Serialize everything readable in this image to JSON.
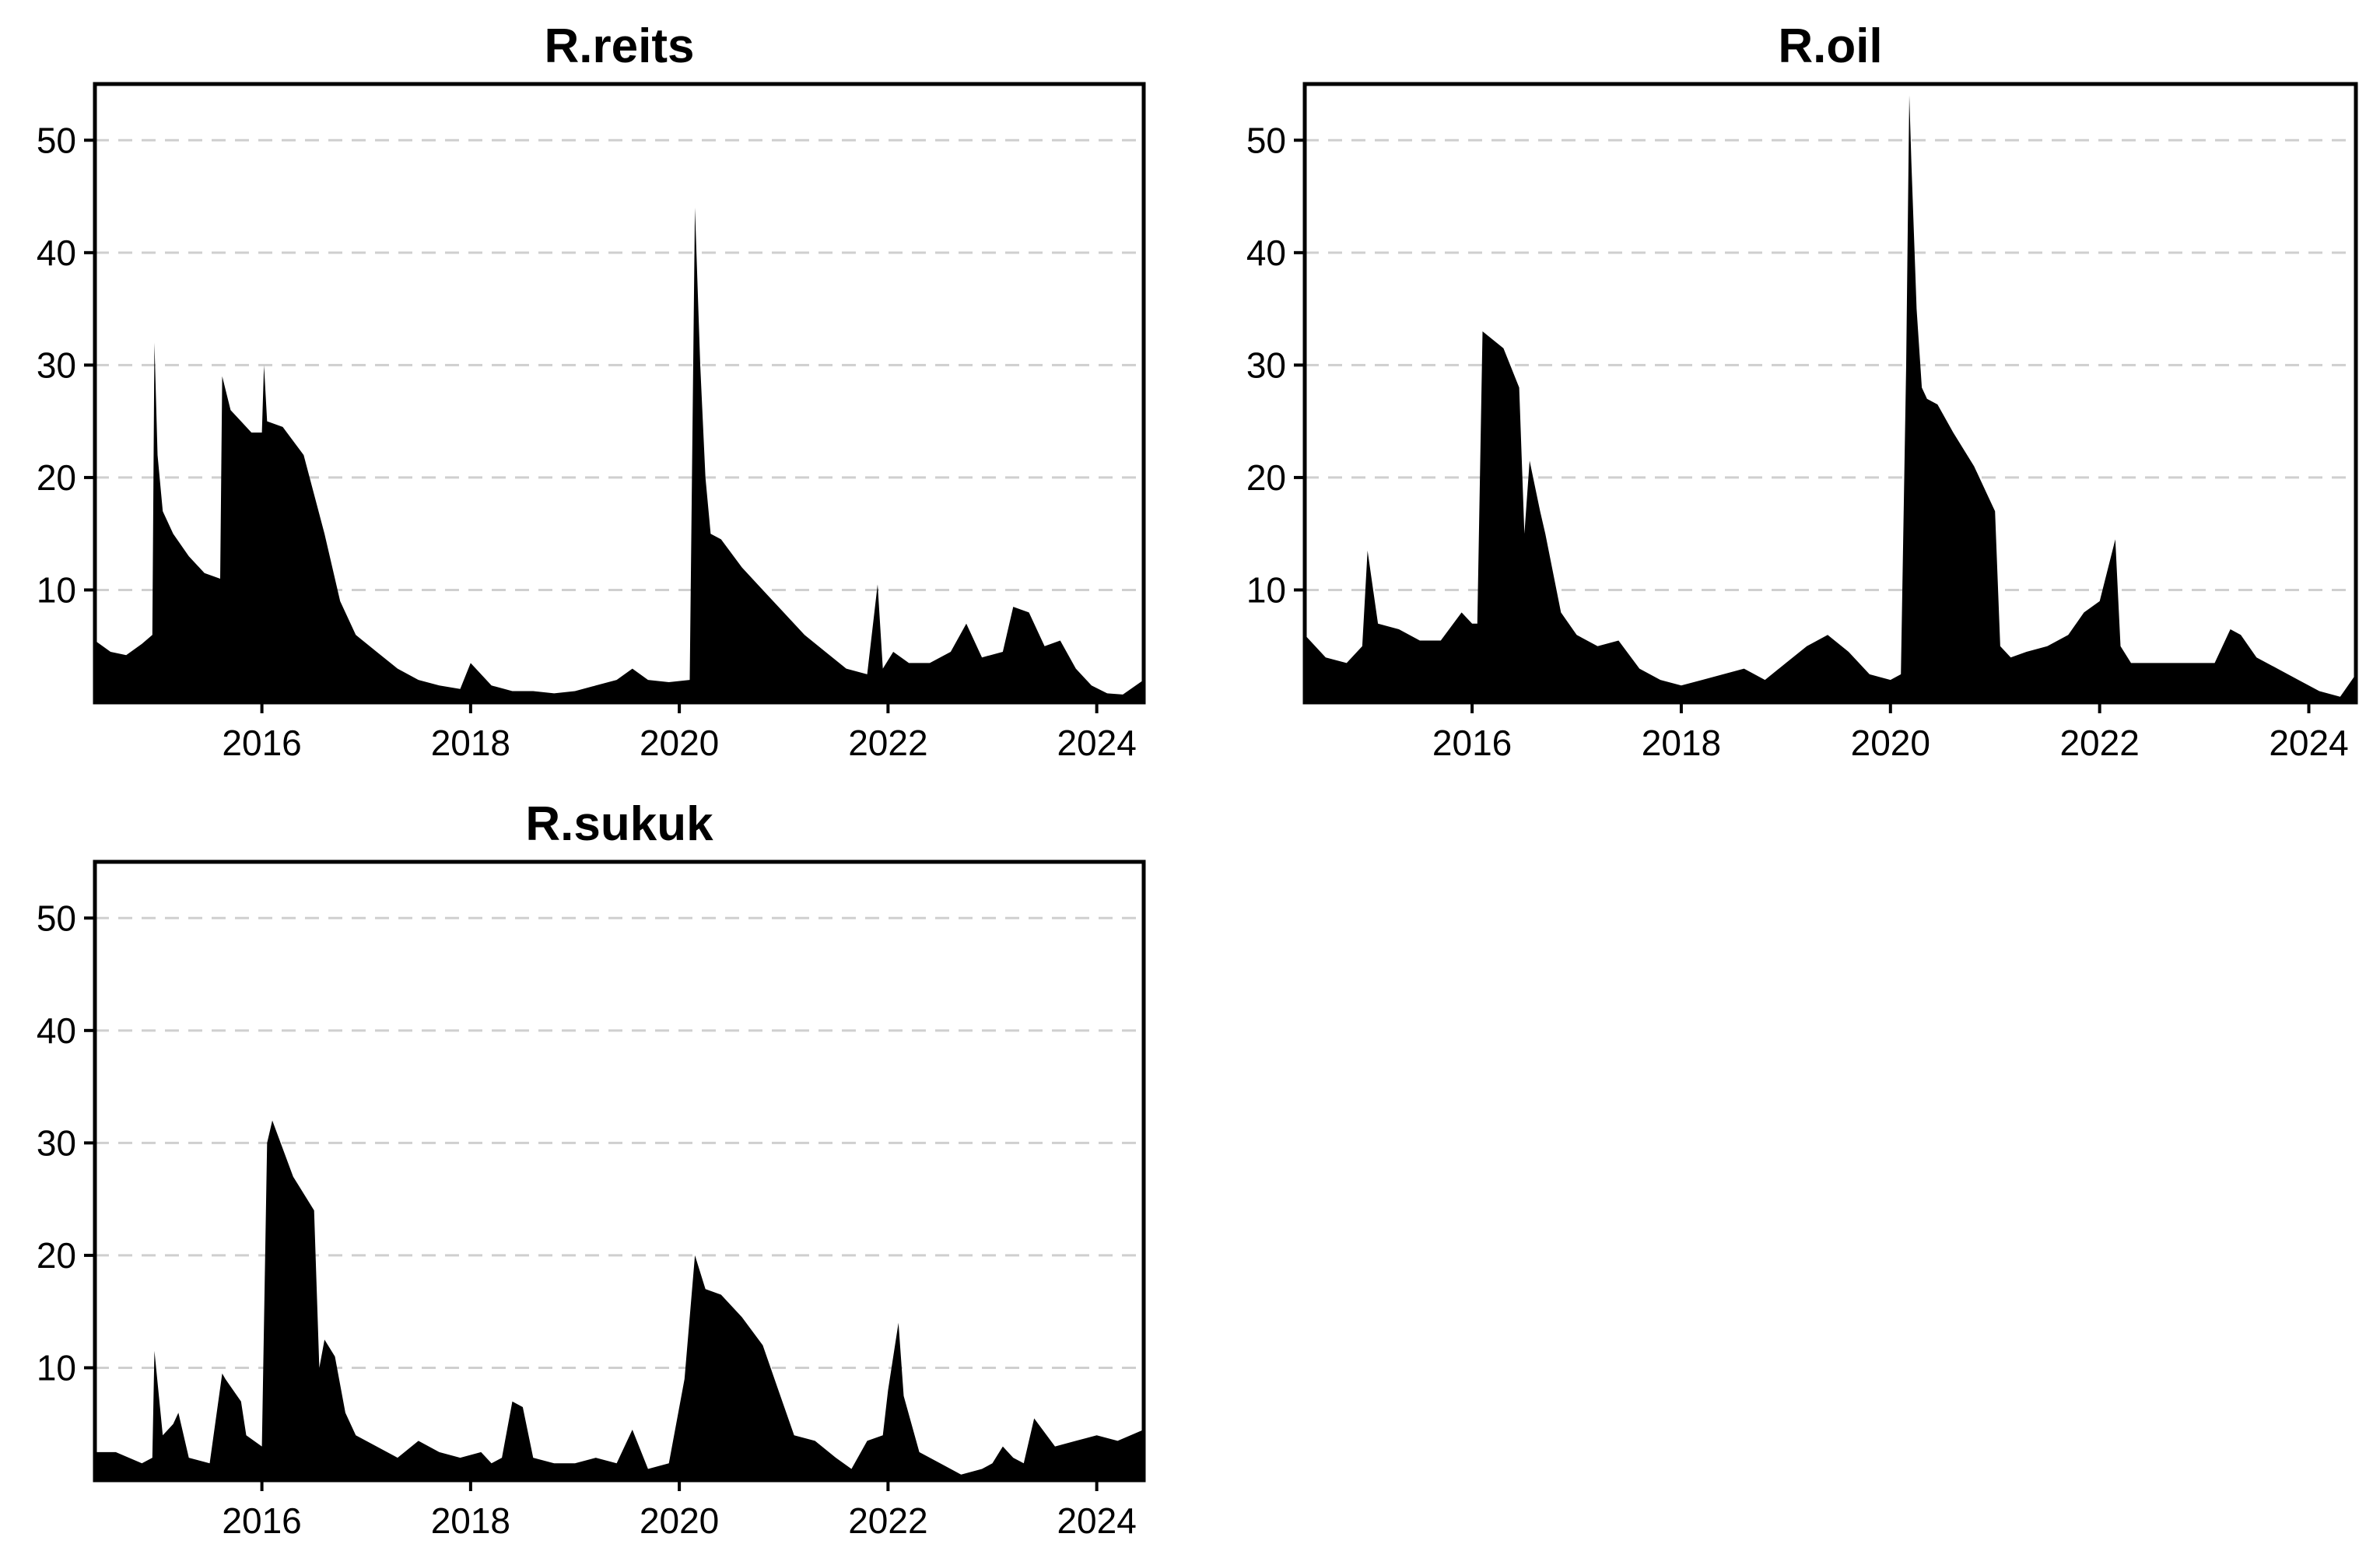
{
  "chart_data": [
    {
      "type": "area",
      "title": "R.reits",
      "xlabel": "",
      "ylabel": "",
      "xlim": [
        2014.4,
        2024.45
      ],
      "ylim": [
        0,
        55
      ],
      "yticks": [
        10,
        20,
        30,
        40,
        50
      ],
      "xticks": [
        "2016",
        "2018",
        "2020",
        "2022",
        "2024"
      ],
      "grid": "horizontal-dashed",
      "x": [
        2014.4,
        2014.55,
        2014.7,
        2014.85,
        2014.95,
        2014.97,
        2015.0,
        2015.05,
        2015.15,
        2015.3,
        2015.45,
        2015.6,
        2015.62,
        2015.7,
        2015.8,
        2015.9,
        2016.0,
        2016.02,
        2016.05,
        2016.2,
        2016.4,
        2016.6,
        2016.75,
        2016.9,
        2017.1,
        2017.3,
        2017.5,
        2017.7,
        2017.9,
        2018.0,
        2018.2,
        2018.4,
        2018.6,
        2018.8,
        2019.0,
        2019.2,
        2019.4,
        2019.55,
        2019.7,
        2019.9,
        2020.1,
        2020.15,
        2020.2,
        2020.25,
        2020.3,
        2020.4,
        2020.6,
        2020.8,
        2021.0,
        2021.2,
        2021.4,
        2021.6,
        2021.8,
        2021.9,
        2021.95,
        2022.05,
        2022.2,
        2022.4,
        2022.6,
        2022.75,
        2022.9,
        2023.1,
        2023.2,
        2023.35,
        2023.5,
        2023.65,
        2023.8,
        2023.95,
        2024.1,
        2024.25,
        2024.45
      ],
      "values": [
        5.5,
        4.5,
        4.2,
        5.2,
        6.0,
        32.0,
        22.0,
        17.0,
        15.0,
        13.0,
        11.5,
        11.0,
        29.0,
        26.0,
        25.0,
        24.0,
        24.0,
        30.0,
        25.0,
        24.5,
        22.0,
        15.0,
        9.0,
        6.0,
        4.5,
        3.0,
        2.0,
        1.5,
        1.2,
        3.5,
        1.5,
        1.0,
        1.0,
        0.8,
        1.0,
        1.5,
        2.0,
        3.0,
        2.0,
        1.8,
        2.0,
        44.0,
        30.0,
        20.0,
        15.0,
        14.5,
        12.0,
        10.0,
        8.0,
        6.0,
        4.5,
        3.0,
        2.5,
        10.5,
        3.0,
        4.5,
        3.5,
        3.5,
        4.5,
        7.0,
        4.0,
        4.5,
        8.5,
        8.0,
        5.0,
        5.5,
        3.0,
        1.5,
        0.8,
        0.7,
        2.0
      ]
    },
    {
      "type": "area",
      "title": "R.oil",
      "xlabel": "",
      "ylabel": "",
      "xlim": [
        2014.4,
        2024.45
      ],
      "ylim": [
        0,
        55
      ],
      "yticks": [
        10,
        20,
        30,
        40,
        50
      ],
      "xticks": [
        "2016",
        "2018",
        "2020",
        "2022",
        "2024"
      ],
      "grid": "horizontal-dashed",
      "x": [
        2014.4,
        2014.6,
        2014.8,
        2014.95,
        2015.0,
        2015.1,
        2015.3,
        2015.5,
        2015.7,
        2015.9,
        2016.0,
        2016.05,
        2016.1,
        2016.3,
        2016.45,
        2016.5,
        2016.55,
        2016.65,
        2016.7,
        2016.85,
        2017.0,
        2017.2,
        2017.4,
        2017.6,
        2017.8,
        2018.0,
        2018.2,
        2018.4,
        2018.6,
        2018.8,
        2019.0,
        2019.2,
        2019.4,
        2019.6,
        2019.8,
        2020.0,
        2020.1,
        2020.15,
        2020.18,
        2020.2,
        2020.25,
        2020.3,
        2020.35,
        2020.45,
        2020.6,
        2020.8,
        2021.0,
        2021.05,
        2021.15,
        2021.3,
        2021.5,
        2021.7,
        2021.85,
        2022.0,
        2022.15,
        2022.2,
        2022.3,
        2022.5,
        2022.7,
        2022.9,
        2023.1,
        2023.25,
        2023.35,
        2023.5,
        2023.7,
        2023.9,
        2024.1,
        2024.3,
        2024.45
      ],
      "values": [
        6.0,
        4.0,
        3.5,
        5.0,
        13.5,
        7.0,
        6.5,
        5.5,
        5.5,
        8.0,
        7.0,
        7.0,
        33.0,
        31.5,
        28.0,
        15.0,
        21.5,
        17.0,
        15.0,
        8.0,
        6.0,
        5.0,
        5.5,
        3.0,
        2.0,
        1.5,
        2.0,
        2.5,
        3.0,
        2.0,
        3.5,
        5.0,
        6.0,
        4.5,
        2.5,
        2.0,
        2.5,
        30.0,
        54.0,
        48.0,
        35.0,
        28.0,
        27.0,
        26.5,
        24.0,
        21.0,
        17.0,
        5.0,
        4.0,
        4.5,
        5.0,
        6.0,
        8.0,
        9.0,
        14.5,
        5.0,
        3.5,
        3.5,
        3.5,
        3.5,
        3.5,
        6.5,
        6.0,
        4.0,
        3.0,
        2.0,
        1.0,
        0.5,
        2.5
      ]
    },
    {
      "type": "area",
      "title": "R.sukuk",
      "xlabel": "",
      "ylabel": "",
      "xlim": [
        2014.4,
        2024.45
      ],
      "ylim": [
        0,
        55
      ],
      "yticks": [
        10,
        20,
        30,
        40,
        50
      ],
      "xticks": [
        "2016",
        "2018",
        "2020",
        "2022",
        "2024"
      ],
      "grid": "horizontal-dashed",
      "x": [
        2014.4,
        2014.6,
        2014.85,
        2014.95,
        2014.97,
        2015.05,
        2015.15,
        2015.2,
        2015.3,
        2015.5,
        2015.62,
        2015.65,
        2015.8,
        2015.85,
        2016.0,
        2016.05,
        2016.1,
        2016.3,
        2016.5,
        2016.55,
        2016.6,
        2016.7,
        2016.8,
        2016.9,
        2017.1,
        2017.3,
        2017.5,
        2017.7,
        2017.9,
        2018.1,
        2018.2,
        2018.3,
        2018.4,
        2018.5,
        2018.6,
        2018.8,
        2019.0,
        2019.2,
        2019.4,
        2019.55,
        2019.7,
        2019.9,
        2020.05,
        2020.15,
        2020.25,
        2020.4,
        2020.6,
        2020.8,
        2020.95,
        2021.1,
        2021.3,
        2021.5,
        2021.65,
        2021.8,
        2021.95,
        2022.0,
        2022.1,
        2022.15,
        2022.3,
        2022.5,
        2022.7,
        2022.9,
        2023.0,
        2023.1,
        2023.2,
        2023.3,
        2023.4,
        2023.6,
        2023.8,
        2024.0,
        2024.2,
        2024.45
      ],
      "values": [
        2.5,
        2.5,
        1.5,
        2.0,
        11.5,
        4.0,
        5.0,
        6.0,
        2.0,
        1.5,
        9.5,
        9.0,
        7.0,
        4.0,
        3.0,
        30.0,
        32.0,
        27.0,
        24.0,
        10.0,
        12.5,
        11.0,
        6.0,
        4.0,
        3.0,
        2.0,
        3.5,
        2.5,
        2.0,
        2.5,
        1.5,
        2.0,
        7.0,
        6.5,
        2.0,
        1.5,
        1.5,
        2.0,
        1.5,
        4.5,
        1.0,
        1.5,
        9.0,
        20.0,
        17.0,
        16.5,
        14.5,
        12.0,
        8.0,
        4.0,
        3.5,
        2.0,
        1.0,
        3.5,
        4.0,
        8.0,
        14.0,
        7.5,
        2.5,
        1.5,
        0.5,
        1.0,
        1.5,
        3.0,
        2.0,
        1.5,
        5.5,
        3.0,
        3.5,
        4.0,
        3.5,
        4.5
      ]
    }
  ]
}
